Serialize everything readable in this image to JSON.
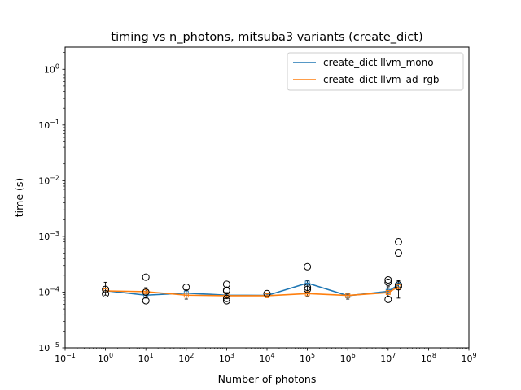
{
  "chart_data": {
    "type": "line",
    "title": "timing vs n_photons, mitsuba3 variants (create_dict)",
    "xlabel": "Number of photons",
    "ylabel": "time (s)",
    "xscale": "log",
    "yscale": "log",
    "xlim": [
      0.1,
      1000000000
    ],
    "ylim": [
      1e-05,
      2.5
    ],
    "x_ticks": [
      {
        "value": 0.1,
        "base": "10",
        "exp": "−1"
      },
      {
        "value": 1,
        "base": "10",
        "exp": "0"
      },
      {
        "value": 10,
        "base": "10",
        "exp": "1"
      },
      {
        "value": 100,
        "base": "10",
        "exp": "2"
      },
      {
        "value": 1000,
        "base": "10",
        "exp": "3"
      },
      {
        "value": 10000,
        "base": "10",
        "exp": "4"
      },
      {
        "value": 100000,
        "base": "10",
        "exp": "5"
      },
      {
        "value": 1000000,
        "base": "10",
        "exp": "6"
      },
      {
        "value": 10000000,
        "base": "10",
        "exp": "7"
      },
      {
        "value": 100000000,
        "base": "10",
        "exp": "8"
      },
      {
        "value": 1000000000,
        "base": "10",
        "exp": "9"
      }
    ],
    "y_ticks": [
      {
        "value": 1e-05,
        "base": "10",
        "exp": "−5"
      },
      {
        "value": 0.0001,
        "base": "10",
        "exp": "−4"
      },
      {
        "value": 0.001,
        "base": "10",
        "exp": "−3"
      },
      {
        "value": 0.01,
        "base": "10",
        "exp": "−2"
      },
      {
        "value": 0.1,
        "base": "10",
        "exp": "−1"
      },
      {
        "value": 1,
        "base": "10",
        "exp": "0"
      }
    ],
    "legend_position": "top-right",
    "series": [
      {
        "name": "create_dict llvm_mono",
        "color": "#1f77b4",
        "x": [
          1,
          10,
          100,
          1000,
          10000,
          100000,
          1000000,
          10000000,
          18000000
        ],
        "y": [
          0.000106,
          8.8e-05,
          9.6e-05,
          8.8e-05,
          8.7e-05,
          0.000145,
          8.6e-05,
          0.000103,
          0.000135
        ]
      },
      {
        "name": "create_dict llvm_ad_rgb",
        "color": "#ff7f0e",
        "x": [
          1,
          10,
          100,
          1000,
          10000,
          100000,
          1000000,
          10000000,
          18000000
        ],
        "y": [
          0.000105,
          0.000102,
          8.8e-05,
          8.6e-05,
          8.6e-05,
          9.4e-05,
          8.7e-05,
          9.8e-05,
          0.000125
        ]
      }
    ],
    "outliers": [
      {
        "x": 1,
        "y": 9.3e-05
      },
      {
        "x": 1,
        "y": 0.000112
      },
      {
        "x": 10,
        "y": 0.000185
      },
      {
        "x": 10,
        "y": 7e-05
      },
      {
        "x": 10,
        "y": 0.0001
      },
      {
        "x": 100,
        "y": 0.000122
      },
      {
        "x": 1000,
        "y": 0.000138
      },
      {
        "x": 1000,
        "y": 0.000108
      },
      {
        "x": 1000,
        "y": 0.000105
      },
      {
        "x": 1000,
        "y": 7.7e-05
      },
      {
        "x": 1000,
        "y": 7e-05
      },
      {
        "x": 10000,
        "y": 9.4e-05
      },
      {
        "x": 100000,
        "y": 0.000285
      },
      {
        "x": 100000,
        "y": 0.000122
      },
      {
        "x": 100000,
        "y": 0.000112
      },
      {
        "x": 10000000,
        "y": 0.000165
      },
      {
        "x": 10000000,
        "y": 0.00015
      },
      {
        "x": 10000000,
        "y": 7.4e-05
      },
      {
        "x": 18000000,
        "y": 0.0008
      },
      {
        "x": 18000000,
        "y": 0.0005
      },
      {
        "x": 18000000,
        "y": 0.000135
      },
      {
        "x": 18000000,
        "y": 0.000125
      }
    ],
    "error_bars": [
      {
        "x": 1,
        "low": 8.8e-05,
        "high": 0.00015
      },
      {
        "x": 10,
        "low": 7.8e-05,
        "high": 0.00012
      },
      {
        "x": 100,
        "low": 7.5e-05,
        "high": 0.00011
      },
      {
        "x": 1000,
        "low": 7.6e-05,
        "high": 9.8e-05
      },
      {
        "x": 10000,
        "low": 8e-05,
        "high": 9.3e-05
      },
      {
        "x": 100000,
        "low": 8.5e-05,
        "high": 0.00016
      },
      {
        "x": 1000000,
        "low": 7.5e-05,
        "high": 9.2e-05
      },
      {
        "x": 10000000,
        "low": 8.2e-05,
        "high": 0.000125
      },
      {
        "x": 18000000,
        "low": 7.8e-05,
        "high": 0.00016
      }
    ]
  }
}
